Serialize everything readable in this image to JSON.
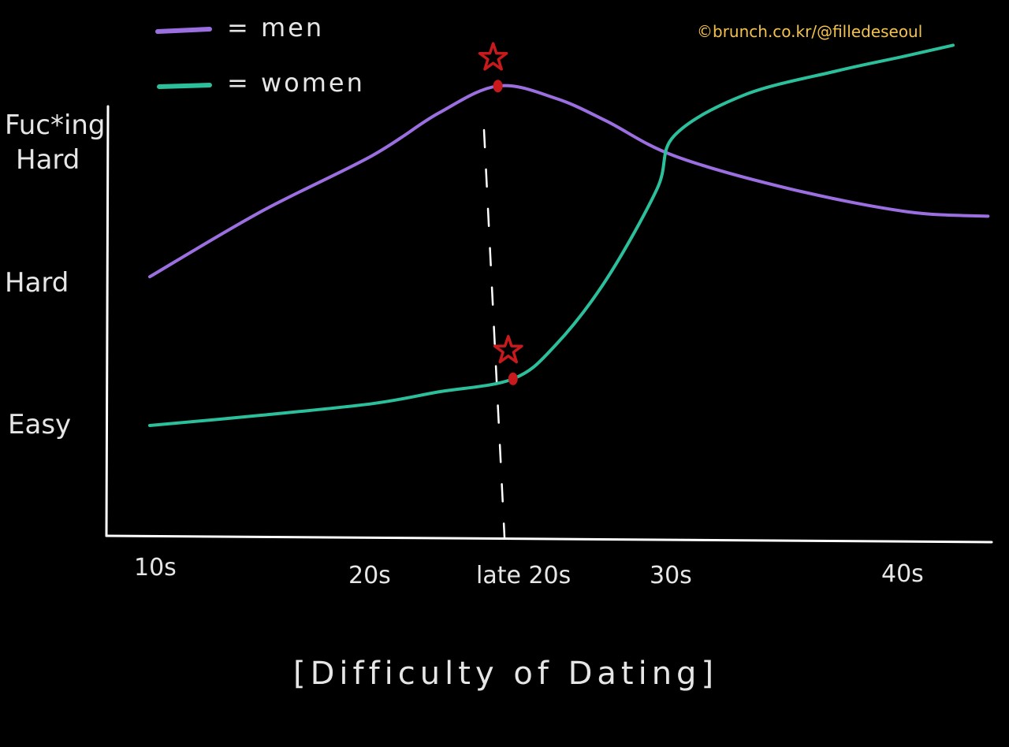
{
  "chart_data": {
    "type": "line",
    "title": "[Difficulty of Dating]",
    "xlabel": "",
    "ylabel": "",
    "credit": "©brunch.co.kr/@filledeseoul",
    "categories": [
      "10s",
      "20s",
      "late 20s",
      "30s",
      "40s"
    ],
    "y_levels": [
      "Easy",
      "Hard",
      "Fuc*ing Hard"
    ],
    "y_level_values": [
      1,
      2,
      3
    ],
    "ylim": [
      0.2,
      3.4
    ],
    "series": [
      {
        "name": "men",
        "color": "#9b6fe0",
        "x": [
          0,
          0.5,
          1,
          1.5,
          1.95,
          2.3,
          2.6,
          3.0,
          3.5,
          4.0,
          4.35
        ],
        "y": [
          2.02,
          2.45,
          2.82,
          3.1,
          3.28,
          3.2,
          3.05,
          2.82,
          2.6,
          2.45,
          2.42
        ]
      },
      {
        "name": "women",
        "color": "#2bbf9b",
        "x": [
          0,
          0.5,
          1,
          1.5,
          2.05,
          2.3,
          2.6,
          2.9,
          3.0,
          3.3,
          3.7,
          4.0,
          4.2
        ],
        "y": [
          1.0,
          1.07,
          1.15,
          1.23,
          1.32,
          1.55,
          2.0,
          2.6,
          2.95,
          3.22,
          3.38,
          3.48,
          3.55
        ]
      }
    ],
    "markers": [
      {
        "series": "men",
        "x": 1.95,
        "y": 3.28,
        "color": "#c8191d"
      },
      {
        "series": "women",
        "x": 2.05,
        "y": 1.32,
        "color": "#c8191d"
      }
    ],
    "legend": [
      {
        "label": "= men",
        "color": "#9b6fe0"
      },
      {
        "label": "= women",
        "color": "#2bbf9b"
      }
    ],
    "legend_position": "top-left",
    "grid": false
  }
}
